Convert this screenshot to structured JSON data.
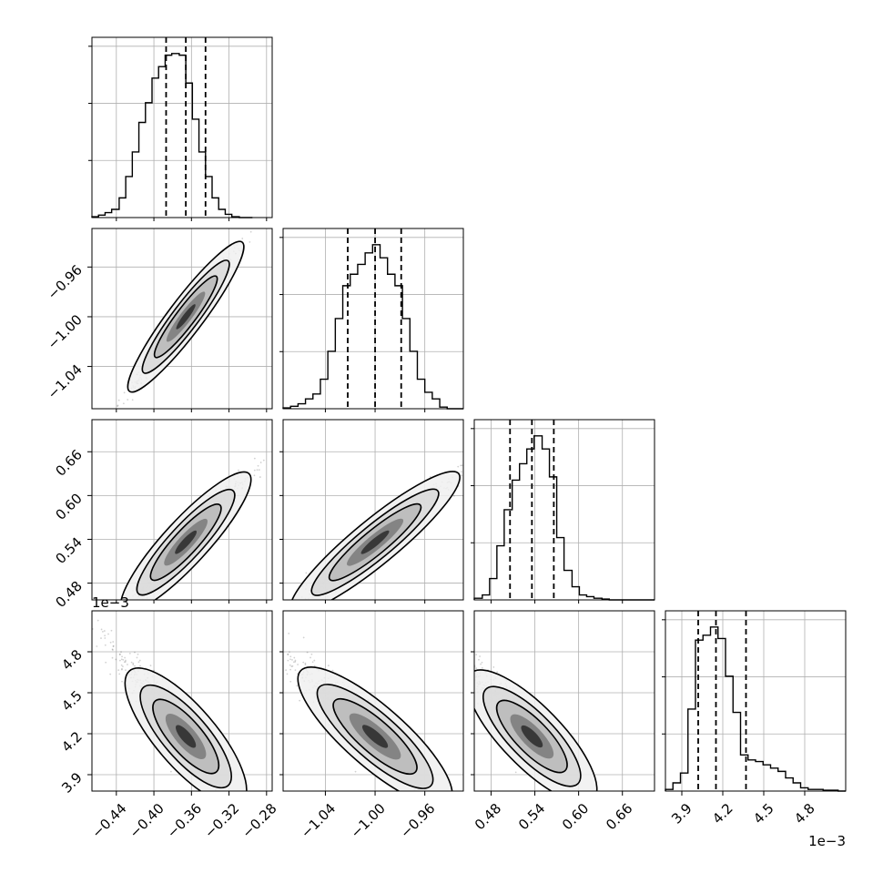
{
  "chart_data": {
    "type": "corner",
    "parameters": [
      {
        "ticks": [
          -0.44,
          -0.4,
          -0.36,
          -0.32,
          -0.28
        ],
        "tick_labels": [
          "−0.44",
          "−0.40",
          "−0.36",
          "−0.32",
          "−0.28"
        ],
        "range": [
          -0.466,
          -0.274
        ],
        "offset": ""
      },
      {
        "ticks": [
          -1.04,
          -1.0,
          -0.96
        ],
        "tick_labels": [
          "−1.04",
          "−1.00",
          "−0.96"
        ],
        "range": [
          -1.074,
          -0.929
        ],
        "offset": ""
      },
      {
        "ticks": [
          0.48,
          0.54,
          0.6,
          0.66
        ],
        "tick_labels": [
          "0.48",
          "0.54",
          "0.60",
          "0.66"
        ],
        "range": [
          0.457,
          0.704
        ],
        "offset": ""
      },
      {
        "ticks": [
          3.9,
          4.2,
          4.5,
          4.8
        ],
        "tick_labels": [
          "3.9",
          "4.2",
          "4.5",
          "4.8"
        ],
        "range": [
          3.78,
          5.1
        ],
        "offset": "1e−3"
      }
    ],
    "quantiles": [
      [
        -0.387,
        -0.366,
        -0.345
      ],
      [
        -1.022,
        -1.0,
        -0.979
      ],
      [
        0.506,
        0.536,
        0.566
      ],
      [
        4.02,
        4.15,
        4.37
      ]
    ],
    "histograms": [
      {
        "bin_edges": [
          -0.466,
          -0.459,
          -0.452,
          -0.445,
          -0.437,
          -0.43,
          -0.423,
          -0.416,
          -0.409,
          -0.402,
          -0.395,
          -0.388,
          -0.381,
          -0.373,
          -0.366,
          -0.359,
          -0.352,
          -0.345,
          -0.338,
          -0.331,
          -0.324,
          -0.317,
          -0.309,
          -0.302,
          -0.295
        ],
        "counts": [
          0.5,
          1.5,
          3,
          5,
          12,
          25,
          40,
          58,
          70,
          85,
          92,
          99,
          100,
          99,
          82,
          60,
          40,
          25,
          12,
          5,
          2,
          0.5,
          0,
          0
        ]
      },
      {
        "bin_edges": [
          -1.074,
          -1.068,
          -1.062,
          -1.056,
          -1.05,
          -1.044,
          -1.038,
          -1.032,
          -1.026,
          -1.02,
          -1.014,
          -1.008,
          -1.002,
          -0.996,
          -0.99,
          -0.984,
          -0.978,
          -0.972,
          -0.966,
          -0.96,
          -0.954,
          -0.948,
          -0.942,
          -0.936,
          -0.929
        ],
        "counts": [
          0.5,
          1.5,
          3,
          6,
          9,
          18,
          35,
          55,
          75,
          82,
          88,
          95,
          100,
          92,
          82,
          75,
          55,
          35,
          18,
          10,
          6,
          1,
          0,
          0
        ]
      },
      {
        "bin_edges": [
          0.457,
          0.468,
          0.478,
          0.488,
          0.498,
          0.509,
          0.519,
          0.529,
          0.539,
          0.55,
          0.56,
          0.57,
          0.58,
          0.591,
          0.601,
          0.611,
          0.621,
          0.632,
          0.642,
          0.652,
          0.662,
          0.673,
          0.683,
          0.693,
          0.704
        ],
        "counts": [
          1,
          3,
          13,
          33,
          55,
          73,
          83,
          92,
          100,
          92,
          75,
          38,
          18,
          8,
          3,
          2,
          1,
          0.5,
          0,
          0,
          0,
          0,
          0,
          0
        ]
      },
      {
        "bin_edges": [
          3.78,
          3.835,
          3.89,
          3.945,
          4.0,
          4.055,
          4.11,
          4.165,
          4.22,
          4.275,
          4.33,
          4.385,
          4.44,
          4.495,
          4.55,
          4.605,
          4.66,
          4.715,
          4.77,
          4.825,
          4.88,
          4.935,
          4.99,
          5.045,
          5.1
        ],
        "counts": [
          1,
          5,
          11,
          50,
          92,
          95,
          100,
          93,
          70,
          48,
          22,
          19,
          18,
          16,
          14,
          12,
          8,
          5,
          2,
          1,
          1,
          0.5,
          0.5,
          0
        ]
      }
    ],
    "correlations": [
      {
        "pair": [
          1,
          0
        ],
        "mean": [
          -0.366,
          -1.0
        ],
        "slope": 1.0,
        "spread": [
          0.025,
          0.004
        ],
        "direction": "positive"
      },
      {
        "pair": [
          2,
          0
        ],
        "mean": [
          -0.366,
          0.536
        ],
        "slope": 1.4,
        "spread": [
          0.028,
          0.01
        ],
        "direction": "positive"
      },
      {
        "pair": [
          2,
          1
        ],
        "mean": [
          -1.0,
          0.536
        ],
        "slope": 1.4,
        "spread": [
          0.028,
          0.01
        ],
        "direction": "positive"
      },
      {
        "pair": [
          3,
          0
        ],
        "mean": [
          -0.366,
          4.18
        ],
        "slope": -8.0,
        "spread": [
          0.025,
          0.08
        ],
        "direction": "negative",
        "skew": "tail toward low x, high y"
      },
      {
        "pair": [
          3,
          1
        ],
        "mean": [
          -1.0,
          4.18
        ],
        "slope": -8.0,
        "spread": [
          0.025,
          0.08
        ],
        "direction": "negative",
        "skew": "tail toward low x, high y"
      },
      {
        "pair": [
          3,
          2
        ],
        "mean": [
          0.536,
          4.18
        ],
        "slope": -5.5,
        "spread": [
          0.035,
          0.08
        ],
        "direction": "negative",
        "skew": "tail toward low x, high y"
      }
    ],
    "grid": true,
    "colors": {
      "points": "#000000",
      "contours": "#000000",
      "quantile_lines": "#000000",
      "grid": "#b0b0b0"
    }
  }
}
